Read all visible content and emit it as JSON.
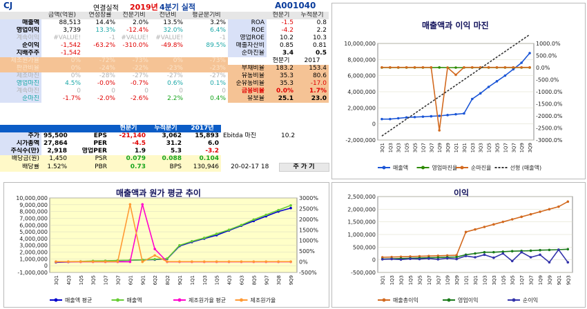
{
  "header": {
    "company": "CJ",
    "subtitle": "연결실적",
    "period_year": "2019년",
    "period_q": "4분기 실적",
    "code": "A001040"
  },
  "table1": {
    "headers": [
      "금액(억원)",
      "연성장률",
      "전분기비",
      "전년비",
      "평균분기비"
    ],
    "rows": [
      {
        "label": "매출액",
        "v": [
          "88,513",
          "14.4%",
          "2.0%",
          "13.5%",
          "3.2%"
        ],
        "style": "normal"
      },
      {
        "label": "영업이익",
        "v": [
          "3,739",
          "13.3%",
          "-12.4%",
          "32.0%",
          "6.4%"
        ],
        "style": "op"
      },
      {
        "label": "계속이익",
        "v": [
          "#VALUE!",
          "-1",
          "#VALUE!",
          "#VALUE!",
          "-1"
        ],
        "style": "grey"
      },
      {
        "label": "순이익",
        "v": [
          "-1,542",
          "-63.2%",
          "-310.0%",
          "-49.8%",
          "89.5%"
        ],
        "style": "net"
      },
      {
        "label": "지배주주",
        "v": [
          "-1,542",
          "",
          "",
          "",
          ""
        ],
        "style": "ctrl"
      },
      {
        "label": "제조원가율",
        "v": [
          "0%",
          "-72%",
          "-73%",
          "0%",
          "-73%"
        ],
        "style": "orangeg"
      },
      {
        "label": "판관비율",
        "v": [
          "0%",
          "-24%",
          "-22%",
          "-23%",
          "-23%"
        ],
        "style": "orangeg"
      },
      {
        "label": "제조마진",
        "v": [
          "0%",
          "-28%",
          "-27%",
          "-27%",
          "-27%"
        ],
        "style": "lgrey"
      },
      {
        "label": "영업마진",
        "v": [
          "4.5%",
          "-0.0%",
          "-0.7%",
          "0.6%",
          "0.1%"
        ],
        "style": "opm"
      },
      {
        "label": "계속마진",
        "v": [
          "0",
          "0",
          "0",
          "0",
          "0"
        ],
        "style": "lgrey"
      },
      {
        "label": "순마진",
        "v": [
          "-1.7%",
          "-2.0%",
          "-2.6%",
          "2.2%",
          "0.4%"
        ],
        "style": "npm"
      }
    ],
    "ratio_headers": [
      "현분기",
      "누적분기"
    ],
    "ratios": [
      {
        "label": "ROA",
        "v": [
          "-1.5",
          "0.8"
        ],
        "red": true
      },
      {
        "label": "ROE",
        "v": [
          "-4.2",
          "2.2"
        ],
        "red": true
      },
      {
        "label": "영업ROE",
        "v": [
          "10.2",
          "10.3"
        ],
        "red": false
      },
      {
        "label": "매출자산비",
        "v": [
          "0.85",
          "0.81"
        ],
        "red": false
      },
      {
        "label": "순마진율",
        "v": [
          "3.4",
          "0.5"
        ],
        "red": false
      }
    ],
    "stab_headers": [
      "현분기",
      "2017"
    ],
    "stab": [
      {
        "label": "부채비율",
        "v": [
          "183.2",
          "153.4"
        ],
        "red": false
      },
      {
        "label": "유동비율",
        "v": [
          "35.3",
          "80.6"
        ],
        "red": false
      },
      {
        "label": "순유동비율",
        "v": [
          "35.3",
          "-17.0"
        ],
        "red": true
      },
      {
        "label": "금융비율",
        "v": [
          "0.0%",
          "1.7%"
        ],
        "red": true
      },
      {
        "label": "유보율",
        "v": [
          "25.1",
          "23.0"
        ],
        "red": false
      }
    ]
  },
  "table2": {
    "headers": [
      "현분기",
      "누적분기",
      "2017년"
    ],
    "left": [
      {
        "label": "주가",
        "v": "95,500"
      },
      {
        "label": "시가총액",
        "v": "27,864"
      },
      {
        "label": "주식수(만)",
        "v": "2,918"
      },
      {
        "label": "배당금(원)",
        "v": "1,450"
      },
      {
        "label": "배당률",
        "v": "1.52%"
      }
    ],
    "mid": [
      {
        "label": "EPS",
        "v": [
          "-21,140",
          "3,062",
          "15,893"
        ],
        "red": [
          true,
          false,
          false
        ]
      },
      {
        "label": "PER",
        "v": [
          "-4.5",
          "31.2",
          "6.0"
        ],
        "red": [
          true,
          false,
          false
        ]
      },
      {
        "label": "영업PER",
        "v": [
          "1.9",
          "5.3",
          "-3.2"
        ],
        "red": [
          false,
          false,
          true
        ]
      },
      {
        "label": "PSR",
        "v": [
          "0.079",
          "0.088",
          "0.104"
        ],
        "red": [
          false,
          false,
          false
        ]
      },
      {
        "label": "PBR",
        "v": [
          "0.73",
          "BPS",
          "130,946"
        ],
        "red": [
          false,
          false,
          false
        ]
      }
    ],
    "ebitda_label": "Ebitda 마진",
    "ebitda_value": "10.2",
    "date": "20-02-17 18",
    "button": "주 가 기"
  },
  "colors": {
    "blue": "#0b5cc6",
    "orange": "#d2691e",
    "magenta": "#ff00cc",
    "green": "#1a7a1a"
  },
  "chart_data": [
    {
      "title": "매출액과 이익 마진",
      "type": "line",
      "x": [
        "3Q1",
        "1Q3",
        "3Q3",
        "1Q5",
        "3Q5",
        "1Q7",
        "3Q7",
        "1Q9",
        "3Q9",
        "1Q1",
        "3Q1",
        "1Q3",
        "3Q3",
        "1Q5",
        "3Q5",
        "1Q7",
        "3Q7",
        "1Q9",
        "3Q9"
      ],
      "ylim": [
        -2000000,
        10000000
      ],
      "y2lim": [
        -3000,
        1000
      ],
      "y_ticks": [
        "10,000,000",
        "8,000,000",
        "6,000,000",
        "4,000,000",
        "2,000,000",
        "0",
        "-2,000,000"
      ],
      "y2_ticks": [
        "1000.0%",
        "500.0%",
        "0.0%",
        "-500.0%",
        "-1000.0%",
        "-1500.0%",
        "-2000.0%",
        "-2500.0%",
        "-3000.0%"
      ],
      "series": [
        {
          "name": "매출액",
          "color": "#1a55d6",
          "axis": "left",
          "values": [
            600000,
            600000,
            700000,
            800000,
            850000,
            900000,
            950000,
            1000000,
            1100000,
            1200000,
            1300000,
            3100000,
            3800000,
            4600000,
            5300000,
            6000000,
            6800000,
            7600000,
            8800000
          ]
        },
        {
          "name": "영업마진율",
          "color": "#2d8a00",
          "axis": "right",
          "values": [
            0,
            0,
            0,
            0,
            0,
            0,
            0,
            5,
            0,
            0,
            0,
            0,
            0,
            0,
            0,
            0,
            0,
            0,
            0
          ]
        },
        {
          "name": "순마진율",
          "color": "#d2691e",
          "axis": "right",
          "values": [
            10,
            10,
            10,
            10,
            10,
            10,
            10,
            -2600,
            0,
            -300,
            10,
            10,
            10,
            10,
            10,
            10,
            10,
            10,
            10
          ]
        },
        {
          "name": "선형 (매출액)",
          "color": "#333333",
          "axis": "left",
          "values": [
            -1500000,
            -800000,
            -100000,
            600000,
            1300000,
            2000000,
            2700000,
            3400000,
            4100000,
            4800000,
            5500000,
            6200000,
            6900000,
            7600000,
            8300000,
            9000000,
            9700000,
            10400000,
            11100000
          ]
        }
      ]
    },
    {
      "title": "매출액과 원가 평균 추이",
      "type": "line",
      "x": [
        "3Q1",
        "4Q3",
        "1Q5",
        "3Q5",
        "1Q7",
        "3Q7",
        "6Q1",
        "9Q1",
        "6Q2",
        "8Q2",
        "9Q1",
        "1Q1",
        "1Q3",
        "1Q5",
        "4Q3",
        "6Q3",
        "8Q5",
        "9Q7",
        "3Q8",
        "9Q9"
      ],
      "ylim": [
        -1000000,
        10000000
      ],
      "y2lim": [
        -500,
        3000
      ],
      "y_ticks": [
        "10,000,000",
        "9,000,000",
        "8,000,000",
        "7,000,000",
        "6,000,000",
        "5,000,000",
        "4,000,000",
        "3,000,000",
        "2,000,000",
        "1,000,000",
        "0",
        "-1,000,000"
      ],
      "y2_ticks": [
        "3000%",
        "2500%",
        "2000%",
        "1500%",
        "1000%",
        "500%",
        "0%",
        "-500%"
      ],
      "series": [
        {
          "name": "매출액 평균",
          "color": "#0000cc",
          "axis": "left",
          "values": [
            500000,
            550000,
            600000,
            650000,
            700000,
            750000,
            800000,
            850000,
            900000,
            1000000,
            2900000,
            3500000,
            4000000,
            4500000,
            5200000,
            5900000,
            6600000,
            7300000,
            8000000,
            8500000
          ]
        },
        {
          "name": "매출액",
          "color": "#66cc33",
          "axis": "left",
          "values": [
            550000,
            600000,
            620000,
            700000,
            720000,
            780000,
            820000,
            870000,
            950000,
            1050000,
            3000000,
            3600000,
            4100000,
            4700000,
            5300000,
            6000000,
            6800000,
            7500000,
            8200000,
            8900000
          ]
        },
        {
          "name": "제조원가율 평균",
          "color": "#ff00cc",
          "axis": "right",
          "values": [
            0,
            0,
            0,
            0,
            0,
            0,
            0,
            2700,
            600,
            0,
            0,
            0,
            0,
            0,
            0,
            0,
            0,
            0,
            0,
            0
          ]
        },
        {
          "name": "제조원가율",
          "color": "#ff9933",
          "axis": "right",
          "values": [
            10,
            10,
            10,
            10,
            10,
            10,
            2700,
            0,
            300,
            10,
            10,
            10,
            10,
            10,
            10,
            10,
            10,
            10,
            10,
            10
          ]
        }
      ]
    },
    {
      "title": "이익",
      "type": "line",
      "x": [
        "3Q1",
        "1Q3",
        "3Q3",
        "1Q5",
        "3Q5",
        "1Q7",
        "3Q7",
        "1Q9",
        "3Q9",
        "1Q1",
        "3Q1",
        "1Q3",
        "3Q3",
        "1Q5",
        "3Q5",
        "1Q7",
        "3Q7",
        "1Q9",
        "3Q9",
        "9Q1",
        "9Q3"
      ],
      "ylim": [
        -500000,
        2500000
      ],
      "y_ticks": [
        "2,500,000",
        "2,000,000",
        "1,500,000",
        "1,000,000",
        "500,000",
        "0",
        "-500,000"
      ],
      "series": [
        {
          "name": "매출총이익",
          "color": "#d2691e",
          "values": [
            100000,
            110000,
            120000,
            130000,
            140000,
            150000,
            160000,
            170000,
            180000,
            1100000,
            1200000,
            1300000,
            1400000,
            1500000,
            1600000,
            1700000,
            1800000,
            1900000,
            2000000,
            2100000,
            2300000
          ]
        },
        {
          "name": "영업이익",
          "color": "#1a7a1a",
          "values": [
            30000,
            40000,
            50000,
            60000,
            70000,
            80000,
            90000,
            100000,
            110000,
            200000,
            250000,
            300000,
            300000,
            320000,
            340000,
            350000,
            360000,
            380000,
            390000,
            400000,
            420000
          ]
        },
        {
          "name": "순이익",
          "color": "#3333aa",
          "values": [
            20000,
            30000,
            10000,
            40000,
            30000,
            50000,
            20000,
            60000,
            30000,
            150000,
            100000,
            200000,
            80000,
            250000,
            -50000,
            300000,
            100000,
            200000,
            -100000,
            400000,
            -100000
          ]
        }
      ]
    }
  ]
}
